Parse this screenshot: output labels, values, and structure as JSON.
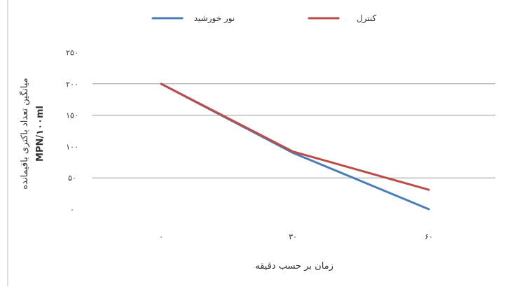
{
  "chart_data": {
    "type": "line",
    "title": "",
    "xlabel": "زمان بر حسب دقیقه",
    "ylabel_lines": [
      "میانگین تعداد باکتری باقیمانده",
      "MPN/۱۰۰ml"
    ],
    "categories": [
      "۰",
      "۳۰",
      "۶۰"
    ],
    "x": [
      0,
      30,
      60
    ],
    "ylim": [
      0,
      250
    ],
    "yticks": [
      0,
      50,
      100,
      150,
      200,
      250
    ],
    "ytick_labels": [
      "۰",
      "۵۰",
      "۱۰۰",
      "۱۵۰",
      "۲۰۰",
      "۲۵۰"
    ],
    "grid": true,
    "gridlines_at": [
      50,
      150,
      200
    ],
    "legend_position": "top",
    "series": [
      {
        "name": "نور خورشید",
        "color": "#4a7ebb",
        "values": [
          200,
          90,
          0
        ]
      },
      {
        "name": "کنترل",
        "color": "#be4b48",
        "values": [
          200,
          92,
          31
        ]
      }
    ]
  }
}
